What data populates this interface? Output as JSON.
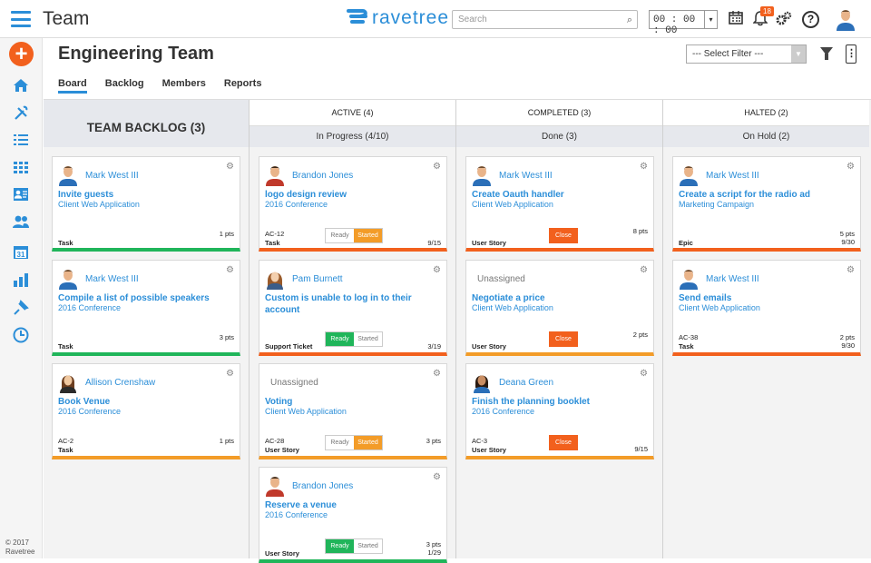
{
  "app": {
    "title": "Team",
    "logo_text": "ravetree",
    "search_placeholder": "Search",
    "timer": "00 : 00 : 00",
    "notif_count": "18",
    "copyright": "© 2017 Ravetree"
  },
  "page": {
    "title": "Engineering Team",
    "filter_value": "--- Select Filter ---",
    "tabs": [
      "Board",
      "Backlog",
      "Members",
      "Reports"
    ]
  },
  "backlog": {
    "title": "TEAM BACKLOG (3)"
  },
  "columns": [
    {
      "label": "ACTIVE (4)",
      "sub": "In Progress (4/10)"
    },
    {
      "label": "COMPLETED (3)",
      "sub": "Done (3)"
    },
    {
      "label": "HALTED (2)",
      "sub": "On Hold (2)"
    }
  ],
  "buttons": {
    "ready": "Ready",
    "started": "Started",
    "close": "Close"
  },
  "cards": {
    "b1": {
      "assignee": "Mark West III",
      "title": "Invite guests",
      "project": "Client Web Application",
      "id": "",
      "type": "Task",
      "pts": "1 pts",
      "count": ""
    },
    "b2": {
      "assignee": "Mark West III",
      "title": "Compile a list of possible speakers",
      "project": "2016 Conference",
      "id": "",
      "type": "Task",
      "pts": "3 pts",
      "count": ""
    },
    "b3": {
      "assignee": "Allison Crenshaw",
      "title": "Book Venue",
      "project": "2016 Conference",
      "id": "AC-2",
      "type": "Task",
      "pts": "1 pts",
      "count": ""
    },
    "a1": {
      "assignee": "Brandon Jones",
      "title": "logo design review",
      "project": "2016 Conference",
      "id": "AC-12",
      "type": "Task",
      "pts": "",
      "count": "9/15"
    },
    "a2": {
      "assignee": "Pam Burnett",
      "title": "Custom is unable to log in to their account",
      "project": "",
      "id": "",
      "type": "Support Ticket",
      "pts": "",
      "count": "3/19"
    },
    "a3": {
      "assignee": "Unassigned",
      "title": "Voting",
      "project": "Client Web Application",
      "id": "AC-28",
      "type": "User Story",
      "pts": "3 pts",
      "count": ""
    },
    "a4": {
      "assignee": "Brandon Jones",
      "title": "Reserve a venue",
      "project": "2016 Conference",
      "id": "",
      "type": "User Story",
      "pts": "3 pts",
      "count": "1/29"
    },
    "c1": {
      "assignee": "Mark West III",
      "title": "Create Oauth handler",
      "project": "Client Web Application",
      "id": "",
      "type": "User Story",
      "pts": "8 pts",
      "count": ""
    },
    "c2": {
      "assignee": "Unassigned",
      "title": "Negotiate a price",
      "project": "Client Web Application",
      "id": "",
      "type": "User Story",
      "pts": "2 pts",
      "count": ""
    },
    "c3": {
      "assignee": "Deana Green",
      "title": "Finish the planning booklet",
      "project": "2016 Conference",
      "id": "AC-3",
      "type": "User Story",
      "pts": "",
      "count": "9/15"
    },
    "h1": {
      "assignee": "Mark West III",
      "title": "Create a script for the radio ad",
      "project": "Marketing Campaign",
      "id": "",
      "type": "Epic",
      "pts": "5 pts",
      "count": "9/30"
    },
    "h2": {
      "assignee": "Mark West III",
      "title": "Send emails",
      "project": "Client Web Application",
      "id": "AC-38",
      "type": "Task",
      "pts": "2 pts",
      "count": "9/30"
    }
  }
}
